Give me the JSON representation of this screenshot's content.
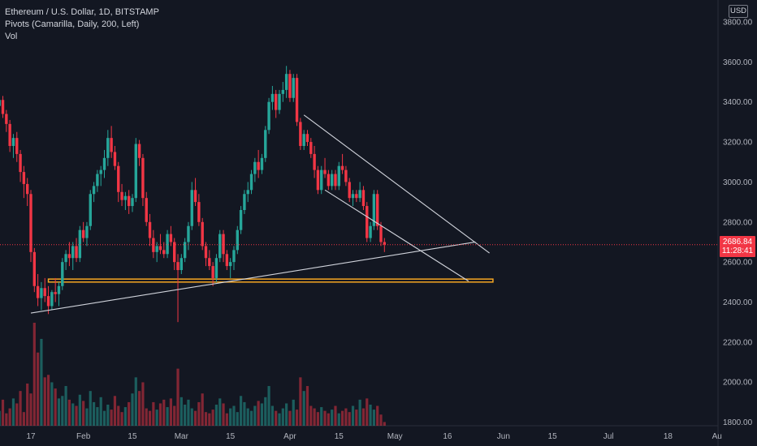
{
  "legend": {
    "symbol": "Ethereum / U.S. Dollar, 1D, BITSTAMP",
    "indicator_pivots": "Pivots (Camarilla, Daily, 200, Left)",
    "indicator_vol": "Vol"
  },
  "currency_label": "USD",
  "current_price": "2686.84",
  "countdown": "11:28:41",
  "colors": {
    "up": "#26a69a",
    "down": "#f23645",
    "bg": "#131722",
    "support_zone": "#f5a623",
    "trendline": "#d1d4dc"
  },
  "chart_data": {
    "type": "candlestick",
    "y_ticks": [
      "3800.00",
      "3600.00",
      "3400.00",
      "3200.00",
      "3000.00",
      "2800.00",
      "2600.00",
      "2400.00",
      "2200.00",
      "2000.00",
      "1800.00"
    ],
    "ylim": [
      1800,
      3800
    ],
    "x_ticks": [
      "17",
      "Feb",
      "15",
      "Mar",
      "15",
      "Apr",
      "15",
      "May",
      "16",
      "Jun",
      "15",
      "Jul",
      "18",
      "Au"
    ],
    "x_tick_dates": [
      "2022-01-17",
      "2022-02-01",
      "2022-02-15",
      "2022-03-01",
      "2022-03-15",
      "2022-04-01",
      "2022-04-15",
      "2022-05-01",
      "2022-05-16",
      "2022-06-01",
      "2022-06-15",
      "2022-07-01",
      "2022-07-18",
      "2022-08-01"
    ],
    "start_date": "2022-01-01",
    "candles": [
      [
        3400,
        3420,
        3300,
        3380
      ],
      [
        3380,
        3450,
        3340,
        3410
      ],
      [
        3410,
        3430,
        3320,
        3340
      ],
      [
        3340,
        3360,
        3250,
        3290
      ],
      [
        3290,
        3310,
        3150,
        3180
      ],
      [
        3180,
        3240,
        3120,
        3220
      ],
      [
        3220,
        3250,
        3100,
        3140
      ],
      [
        3140,
        3160,
        3000,
        3050
      ],
      [
        3050,
        3080,
        2920,
        2990
      ],
      [
        2990,
        3020,
        2880,
        2940
      ],
      [
        2940,
        2960,
        2600,
        2650
      ],
      [
        2650,
        2670,
        2450,
        2480
      ],
      [
        2480,
        2540,
        2380,
        2420
      ],
      [
        2420,
        2500,
        2360,
        2470
      ],
      [
        2470,
        2520,
        2400,
        2430
      ],
      [
        2430,
        2480,
        2340,
        2380
      ],
      [
        2380,
        2460,
        2360,
        2450
      ],
      [
        2450,
        2520,
        2400,
        2440
      ],
      [
        2440,
        2500,
        2380,
        2480
      ],
      [
        2480,
        2620,
        2460,
        2600
      ],
      [
        2600,
        2660,
        2560,
        2640
      ],
      [
        2640,
        2700,
        2580,
        2620
      ],
      [
        2620,
        2700,
        2560,
        2680
      ],
      [
        2680,
        2720,
        2600,
        2620
      ],
      [
        2620,
        2780,
        2600,
        2760
      ],
      [
        2760,
        2800,
        2700,
        2720
      ],
      [
        2720,
        2800,
        2680,
        2780
      ],
      [
        2780,
        2960,
        2760,
        2940
      ],
      [
        2940,
        3000,
        2900,
        2980
      ],
      [
        2980,
        3060,
        2950,
        3040
      ],
      [
        3040,
        3080,
        2980,
        3060
      ],
      [
        3060,
        3160,
        3020,
        3120
      ],
      [
        3120,
        3260,
        3080,
        3220
      ],
      [
        3220,
        3280,
        3120,
        3150
      ],
      [
        3150,
        3180,
        3060,
        3080
      ],
      [
        3080,
        3100,
        2900,
        2950
      ],
      [
        2950,
        2990,
        2880,
        2910
      ],
      [
        2910,
        2950,
        2860,
        2930
      ],
      [
        2930,
        2960,
        2840,
        2880
      ],
      [
        2880,
        2940,
        2850,
        2920
      ],
      [
        2920,
        3220,
        2900,
        3190
      ],
      [
        3190,
        3210,
        3080,
        3120
      ],
      [
        3120,
        3140,
        2880,
        2920
      ],
      [
        2920,
        2950,
        2780,
        2800
      ],
      [
        2800,
        2840,
        2680,
        2720
      ],
      [
        2720,
        2760,
        2620,
        2650
      ],
      [
        2650,
        2700,
        2600,
        2680
      ],
      [
        2680,
        2740,
        2640,
        2660
      ],
      [
        2660,
        2700,
        2620,
        2640
      ],
      [
        2640,
        2760,
        2620,
        2740
      ],
      [
        2740,
        2780,
        2680,
        2700
      ],
      [
        2700,
        2720,
        2560,
        2600
      ],
      [
        2600,
        2640,
        2300,
        2560
      ],
      [
        2560,
        2640,
        2540,
        2620
      ],
      [
        2620,
        2720,
        2600,
        2700
      ],
      [
        2700,
        2800,
        2660,
        2780
      ],
      [
        2780,
        3000,
        2760,
        2960
      ],
      [
        2960,
        3020,
        2880,
        2900
      ],
      [
        2900,
        2940,
        2780,
        2800
      ],
      [
        2800,
        2820,
        2660,
        2680
      ],
      [
        2680,
        2700,
        2580,
        2620
      ],
      [
        2620,
        2660,
        2560,
        2580
      ],
      [
        2580,
        2600,
        2480,
        2520
      ],
      [
        2520,
        2640,
        2500,
        2620
      ],
      [
        2620,
        2760,
        2600,
        2740
      ],
      [
        2740,
        2760,
        2600,
        2640
      ],
      [
        2640,
        2660,
        2560,
        2580
      ],
      [
        2580,
        2620,
        2520,
        2600
      ],
      [
        2600,
        2680,
        2560,
        2660
      ],
      [
        2660,
        2780,
        2640,
        2760
      ],
      [
        2760,
        2880,
        2740,
        2860
      ],
      [
        2860,
        2960,
        2840,
        2940
      ],
      [
        2940,
        3000,
        2900,
        2960
      ],
      [
        2960,
        3060,
        2940,
        3040
      ],
      [
        3040,
        3120,
        3000,
        3100
      ],
      [
        3100,
        3160,
        3020,
        3060
      ],
      [
        3060,
        3140,
        3040,
        3120
      ],
      [
        3120,
        3280,
        3100,
        3260
      ],
      [
        3260,
        3420,
        3240,
        3400
      ],
      [
        3400,
        3480,
        3360,
        3440
      ],
      [
        3440,
        3460,
        3320,
        3360
      ],
      [
        3360,
        3460,
        3340,
        3440
      ],
      [
        3440,
        3500,
        3400,
        3460
      ],
      [
        3460,
        3580,
        3420,
        3540
      ],
      [
        3540,
        3560,
        3400,
        3420
      ],
      [
        3420,
        3540,
        3400,
        3520
      ],
      [
        3520,
        3540,
        3280,
        3300
      ],
      [
        3300,
        3320,
        3160,
        3180
      ],
      [
        3180,
        3260,
        3160,
        3240
      ],
      [
        3240,
        3260,
        3180,
        3200
      ],
      [
        3200,
        3220,
        3120,
        3140
      ],
      [
        3140,
        3180,
        3020,
        3060
      ],
      [
        3060,
        3080,
        2940,
        2960
      ],
      [
        2960,
        3080,
        2940,
        3060
      ],
      [
        3060,
        3120,
        3020,
        3040
      ],
      [
        3040,
        3060,
        2960,
        2980
      ],
      [
        2980,
        3060,
        2960,
        3040
      ],
      [
        3040,
        3060,
        2960,
        2980
      ],
      [
        2980,
        3100,
        2960,
        3080
      ],
      [
        3080,
        3140,
        3040,
        3060
      ],
      [
        3060,
        3080,
        2980,
        3000
      ],
      [
        3000,
        3020,
        2900,
        2920
      ],
      [
        2920,
        2960,
        2880,
        2940
      ],
      [
        2940,
        2960,
        2900,
        2920
      ],
      [
        2920,
        3000,
        2900,
        2960
      ],
      [
        2960,
        2980,
        2860,
        2880
      ],
      [
        2880,
        2900,
        2700,
        2720
      ],
      [
        2720,
        2800,
        2700,
        2780
      ],
      [
        2780,
        2960,
        2760,
        2940
      ],
      [
        2940,
        2960,
        2760,
        2780
      ],
      [
        2780,
        2800,
        2680,
        2700
      ],
      [
        2700,
        2720,
        2650,
        2687
      ]
    ],
    "volume_max": 8.5,
    "volumes": [
      1.6,
      1.2,
      2.1,
      1.0,
      1.4,
      2.2,
      1.8,
      2.8,
      1.1,
      3.4,
      2.6,
      8.3,
      5.9,
      7.0,
      3.9,
      4.1,
      3.5,
      3.0,
      2.2,
      2.4,
      3.2,
      2.1,
      1.8,
      1.6,
      2.5,
      2.0,
      1.4,
      2.8,
      1.9,
      1.5,
      2.3,
      1.2,
      1.7,
      1.3,
      2.4,
      1.6,
      1.1,
      1.5,
      1.9,
      2.6,
      3.9,
      2.8,
      3.5,
      1.4,
      1.2,
      1.9,
      1.3,
      1.8,
      2.1,
      1.5,
      2.2,
      1.6,
      4.6,
      2.3,
      1.7,
      2.1,
      1.4,
      1.2,
      1.9,
      2.6,
      1.1,
      1.0,
      1.3,
      1.7,
      2.2,
      1.8,
      1.0,
      1.4,
      1.6,
      1.1,
      2.4,
      1.9,
      1.4,
      1.2,
      1.6,
      2.0,
      1.8,
      2.3,
      3.2,
      1.6,
      1.2,
      1.0,
      1.4,
      1.8,
      1.2,
      2.1,
      1.3,
      3.9,
      2.8,
      3.2,
      1.6,
      1.4,
      1.1,
      1.5,
      1.2,
      1.0,
      1.3,
      1.6,
      1.0,
      1.2,
      1.4,
      1.1,
      1.6,
      1.3,
      2.1,
      1.4,
      2.2,
      1.7,
      1.3,
      1.6,
      0.9,
      0.3
    ],
    "support_zone": [
      2500,
      2515
    ],
    "trendlines": [
      {
        "from": [
          "2022-01-17",
          2345
        ],
        "to": [
          "2022-05-24",
          2700
        ]
      },
      {
        "from": [
          "2022-04-05",
          3335
        ],
        "to": [
          "2022-05-28",
          2645
        ]
      },
      {
        "from": [
          "2022-04-11",
          2960
        ],
        "to": [
          "2022-05-22",
          2505
        ]
      }
    ],
    "current_price_line": 2686.84
  }
}
